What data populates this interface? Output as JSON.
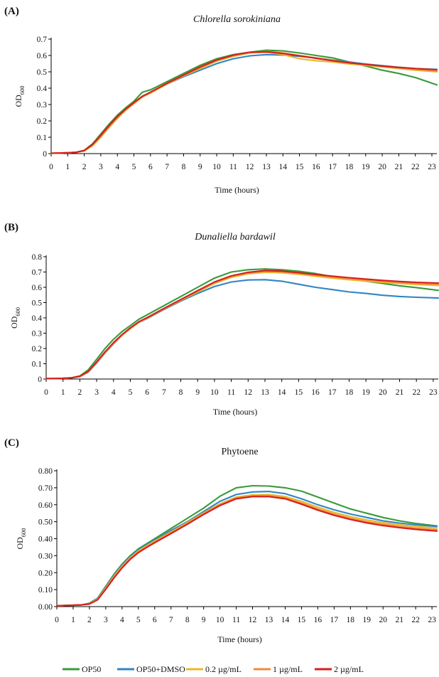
{
  "colors": {
    "OP50": "#3a9a3a",
    "OP50+DMSO": "#2f86c4",
    "0.2 µg/mL": "#e8b82e",
    "1 µg/mL": "#ee8a3c",
    "2 µg/mL": "#d61f1f"
  },
  "legend": [
    {
      "name": "OP50",
      "color": "#3a9a3a"
    },
    {
      "name": "OP50+DMSO",
      "color": "#2f86c4"
    },
    {
      "name": "0.2 µg/mL",
      "color": "#e8b82e"
    },
    {
      "name": "1 µg/mL",
      "color": "#ee8a3c"
    },
    {
      "name": "2 µg/mL",
      "color": "#d61f1f"
    }
  ],
  "chart_data": [
    {
      "panel": "(A)",
      "type": "line",
      "title": "Chlorella sorokiniana",
      "title_italic": true,
      "xlabel": "Time (hours)",
      "ylabel": "OD",
      "ylabel_sub": "600",
      "xlim": [
        0,
        23.3
      ],
      "ylim": [
        0,
        0.7
      ],
      "yticks": [
        0,
        0.1,
        0.2,
        0.3,
        0.4,
        0.5,
        0.6,
        0.7
      ],
      "ytick_labels": [
        "0",
        "0.1",
        "0.2",
        "0.3",
        "0.4",
        "0.5",
        "0.6",
        "0.7"
      ],
      "x": [
        0,
        1,
        1.5,
        2,
        2.5,
        3,
        3.5,
        4,
        4.5,
        5,
        5.5,
        6,
        7,
        8,
        9,
        10,
        11,
        12,
        13,
        14,
        15,
        16,
        17,
        18,
        19,
        20,
        21,
        22,
        23.3
      ],
      "series": [
        {
          "name": "OP50",
          "values": [
            0.002,
            0.005,
            0.008,
            0.02,
            0.06,
            0.12,
            0.18,
            0.235,
            0.28,
            0.32,
            0.375,
            0.39,
            0.44,
            0.49,
            0.54,
            0.58,
            0.605,
            0.62,
            0.632,
            0.628,
            0.615,
            0.6,
            0.585,
            0.56,
            0.535,
            0.51,
            0.49,
            0.465,
            0.42
          ]
        },
        {
          "name": "OP50+DMSO",
          "values": [
            0.002,
            0.005,
            0.008,
            0.018,
            0.055,
            0.11,
            0.17,
            0.225,
            0.27,
            0.31,
            0.35,
            0.375,
            0.425,
            0.47,
            0.51,
            0.55,
            0.58,
            0.598,
            0.605,
            0.602,
            0.595,
            0.585,
            0.572,
            0.56,
            0.548,
            0.538,
            0.528,
            0.52,
            0.515
          ]
        },
        {
          "name": "0.2 µg/mL",
          "values": [
            0.002,
            0.005,
            0.008,
            0.016,
            0.048,
            0.1,
            0.16,
            0.215,
            0.265,
            0.305,
            0.345,
            0.37,
            0.425,
            0.475,
            0.52,
            0.565,
            0.595,
            0.615,
            0.62,
            0.605,
            0.58,
            0.568,
            0.56,
            0.548,
            0.54,
            0.53,
            0.52,
            0.51,
            0.5
          ]
        },
        {
          "name": "1 µg/mL",
          "values": [
            0.002,
            0.005,
            0.008,
            0.018,
            0.052,
            0.105,
            0.165,
            0.22,
            0.268,
            0.308,
            0.348,
            0.372,
            0.428,
            0.478,
            0.525,
            0.57,
            0.6,
            0.618,
            0.625,
            0.615,
            0.6,
            0.585,
            0.57,
            0.555,
            0.545,
            0.535,
            0.525,
            0.515,
            0.505
          ]
        },
        {
          "name": "2 µg/mL",
          "values": [
            0.002,
            0.005,
            0.008,
            0.019,
            0.056,
            0.112,
            0.172,
            0.226,
            0.272,
            0.312,
            0.35,
            0.376,
            0.43,
            0.48,
            0.53,
            0.572,
            0.602,
            0.62,
            0.622,
            0.612,
            0.598,
            0.582,
            0.568,
            0.555,
            0.545,
            0.535,
            0.527,
            0.52,
            0.513
          ]
        }
      ]
    },
    {
      "panel": "(B)",
      "type": "line",
      "title": "Dunaliella bardawil",
      "title_italic": true,
      "xlabel": "Time (hours)",
      "ylabel": "OD",
      "ylabel_sub": "600",
      "xlim": [
        0,
        23.3
      ],
      "ylim": [
        0,
        0.8
      ],
      "yticks": [
        0,
        0.1,
        0.2,
        0.3,
        0.4,
        0.5,
        0.6,
        0.7,
        0.8
      ],
      "ytick_labels": [
        "0",
        "0.1",
        "0.2",
        "0.3",
        "0.4",
        "0.5",
        "0.6",
        "0.7",
        "0.8"
      ],
      "x": [
        0,
        1,
        1.5,
        2,
        2.5,
        3,
        3.5,
        4,
        4.5,
        5,
        5.5,
        6,
        7,
        8,
        9,
        10,
        11,
        12,
        13,
        14,
        15,
        16,
        17,
        18,
        19,
        20,
        21,
        22,
        23.3
      ],
      "series": [
        {
          "name": "OP50",
          "values": [
            0.003,
            0.005,
            0.008,
            0.02,
            0.06,
            0.13,
            0.2,
            0.26,
            0.31,
            0.35,
            0.39,
            0.42,
            0.48,
            0.54,
            0.6,
            0.66,
            0.7,
            0.715,
            0.72,
            0.715,
            0.705,
            0.69,
            0.67,
            0.655,
            0.64,
            0.625,
            0.61,
            0.598,
            0.58
          ]
        },
        {
          "name": "OP50+DMSO",
          "values": [
            0.003,
            0.005,
            0.008,
            0.016,
            0.045,
            0.105,
            0.17,
            0.23,
            0.285,
            0.33,
            0.37,
            0.395,
            0.455,
            0.51,
            0.56,
            0.605,
            0.635,
            0.648,
            0.65,
            0.64,
            0.62,
            0.6,
            0.585,
            0.57,
            0.56,
            0.548,
            0.54,
            0.535,
            0.53
          ]
        },
        {
          "name": "0.2 µg/mL",
          "values": [
            0.003,
            0.005,
            0.008,
            0.016,
            0.046,
            0.108,
            0.172,
            0.232,
            0.285,
            0.33,
            0.37,
            0.398,
            0.458,
            0.515,
            0.57,
            0.625,
            0.665,
            0.688,
            0.698,
            0.695,
            0.685,
            0.672,
            0.66,
            0.65,
            0.64,
            0.632,
            0.625,
            0.618,
            0.612
          ]
        },
        {
          "name": "1 µg/mL",
          "values": [
            0.003,
            0.005,
            0.008,
            0.017,
            0.048,
            0.11,
            0.175,
            0.235,
            0.288,
            0.333,
            0.372,
            0.4,
            0.46,
            0.518,
            0.575,
            0.632,
            0.672,
            0.695,
            0.705,
            0.702,
            0.692,
            0.68,
            0.668,
            0.657,
            0.648,
            0.64,
            0.632,
            0.626,
            0.62
          ]
        },
        {
          "name": "2 µg/mL",
          "values": [
            0.003,
            0.005,
            0.008,
            0.018,
            0.05,
            0.112,
            0.178,
            0.238,
            0.29,
            0.335,
            0.374,
            0.402,
            0.462,
            0.52,
            0.578,
            0.635,
            0.675,
            0.698,
            0.71,
            0.706,
            0.696,
            0.684,
            0.673,
            0.663,
            0.654,
            0.645,
            0.638,
            0.632,
            0.628
          ]
        }
      ]
    },
    {
      "panel": "(C)",
      "type": "line",
      "title": "Phytoene",
      "title_italic": false,
      "xlabel": "Time (hours)",
      "ylabel": "OD",
      "ylabel_sub": "600",
      "xlim": [
        0,
        23.3
      ],
      "ylim": [
        0,
        0.8
      ],
      "yticks": [
        0,
        0.1,
        0.2,
        0.3,
        0.4,
        0.5,
        0.6,
        0.7,
        0.8
      ],
      "ytick_labels": [
        "0.00",
        "0.10",
        "0.20",
        "0.30",
        "0.40",
        "0.50",
        "0.60",
        "0.70",
        "0.80"
      ],
      "x": [
        0,
        1,
        1.5,
        2,
        2.5,
        3,
        3.5,
        4,
        4.5,
        5,
        5.5,
        6,
        7,
        8,
        9,
        10,
        11,
        12,
        13,
        14,
        15,
        16,
        17,
        18,
        19,
        20,
        21,
        22,
        23.3
      ],
      "series": [
        {
          "name": "OP50",
          "values": [
            0.005,
            0.008,
            0.01,
            0.02,
            0.05,
            0.12,
            0.19,
            0.25,
            0.3,
            0.34,
            0.37,
            0.4,
            0.46,
            0.52,
            0.58,
            0.65,
            0.7,
            0.712,
            0.71,
            0.7,
            0.68,
            0.645,
            0.61,
            0.575,
            0.55,
            0.525,
            0.505,
            0.49,
            0.475
          ]
        },
        {
          "name": "OP50+DMSO",
          "values": [
            0.005,
            0.008,
            0.01,
            0.018,
            0.048,
            0.115,
            0.185,
            0.245,
            0.295,
            0.335,
            0.365,
            0.392,
            0.448,
            0.5,
            0.56,
            0.62,
            0.66,
            0.675,
            0.678,
            0.665,
            0.635,
            0.6,
            0.57,
            0.545,
            0.525,
            0.505,
            0.492,
            0.482,
            0.472
          ]
        },
        {
          "name": "0.2 µg/mL",
          "values": [
            0.005,
            0.008,
            0.01,
            0.017,
            0.045,
            0.11,
            0.178,
            0.238,
            0.288,
            0.328,
            0.358,
            0.386,
            0.44,
            0.495,
            0.552,
            0.605,
            0.645,
            0.658,
            0.66,
            0.648,
            0.62,
            0.585,
            0.555,
            0.53,
            0.51,
            0.495,
            0.482,
            0.472,
            0.462
          ]
        },
        {
          "name": "1 µg/mL",
          "values": [
            0.005,
            0.008,
            0.01,
            0.016,
            0.043,
            0.106,
            0.172,
            0.232,
            0.282,
            0.322,
            0.352,
            0.38,
            0.435,
            0.49,
            0.548,
            0.6,
            0.64,
            0.652,
            0.652,
            0.64,
            0.61,
            0.575,
            0.545,
            0.52,
            0.5,
            0.485,
            0.472,
            0.462,
            0.452
          ]
        },
        {
          "name": "2 µg/mL",
          "values": [
            0.005,
            0.008,
            0.01,
            0.015,
            0.04,
            0.102,
            0.168,
            0.228,
            0.278,
            0.318,
            0.348,
            0.376,
            0.43,
            0.485,
            0.543,
            0.595,
            0.635,
            0.648,
            0.648,
            0.635,
            0.603,
            0.568,
            0.538,
            0.513,
            0.493,
            0.477,
            0.465,
            0.455,
            0.445
          ]
        }
      ]
    }
  ]
}
